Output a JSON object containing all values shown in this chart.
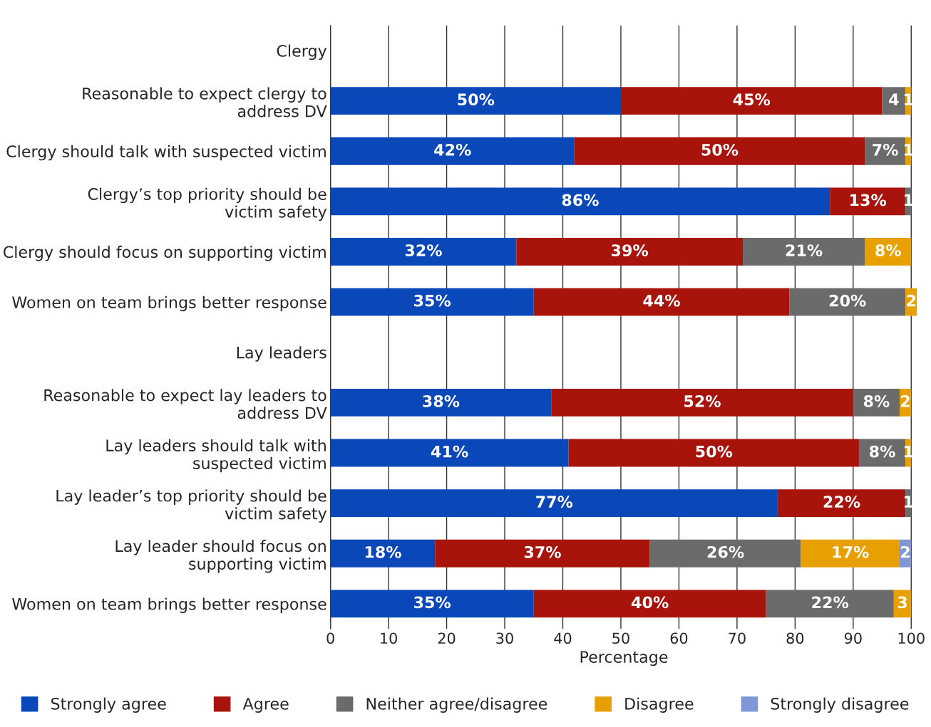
{
  "chart_data": {
    "type": "bar",
    "orientation": "horizontal",
    "stacked": true,
    "xlabel": "Percentage",
    "categories": [
      "Clergy",
      "Reasonable to expect clergy to\naddress DV",
      "Clergy should talk with suspected victim",
      "Clergy’s top priority should be\nvictim safety",
      "Clergy should focus on supporting victim",
      "Women on team brings better response",
      "Lay leaders",
      "Reasonable to expect lay leaders to\naddress DV",
      "Lay leaders should talk with\nsuspected victim",
      "Lay leader’s top priority should be\nvictim safety",
      "Lay leader should focus on\nsupporting victim",
      "Women on team brings better response"
    ],
    "series": [
      {
        "name": "Strongly agree",
        "color": "#0a47b8",
        "values": [
          null,
          50,
          42,
          86,
          32,
          35,
          null,
          38,
          41,
          77,
          18,
          35
        ],
        "value_labels": [
          null,
          "50%",
          "42%",
          "86%",
          "32%",
          "35%",
          null,
          "38%",
          "41%",
          "77%",
          "18%",
          "35%"
        ]
      },
      {
        "name": "Agree",
        "color": "#a8130b",
        "values": [
          null,
          45,
          50,
          13,
          39,
          44,
          null,
          52,
          50,
          22,
          37,
          40
        ],
        "value_labels": [
          null,
          "45%",
          "50%",
          "13%",
          "39%",
          "44%",
          null,
          "52%",
          "50%",
          "22%",
          "37%",
          "40%"
        ]
      },
      {
        "name": "Neither agree/disagree",
        "color": "#6b6b6b",
        "values": [
          null,
          4,
          7,
          1,
          21,
          20,
          null,
          8,
          8,
          1,
          26,
          22
        ],
        "value_labels": [
          null,
          "4",
          "7%",
          "1",
          "21%",
          "20%",
          null,
          "8%",
          "8%",
          "1",
          "26%",
          "22%"
        ]
      },
      {
        "name": "Disagree",
        "color": "#e8a000",
        "values": [
          null,
          1,
          1,
          null,
          8,
          2,
          null,
          2,
          1,
          null,
          17,
          3
        ],
        "value_labels": [
          null,
          "1",
          "1",
          null,
          "8%",
          "2",
          null,
          "2",
          "1",
          null,
          "17%",
          "3"
        ]
      },
      {
        "name": "Strongly disagree",
        "color": "#8096d6",
        "values": [
          null,
          null,
          null,
          null,
          null,
          null,
          null,
          null,
          null,
          null,
          2,
          null
        ],
        "value_labels": [
          null,
          null,
          null,
          null,
          null,
          null,
          null,
          null,
          null,
          null,
          "2",
          null
        ]
      }
    ],
    "xlim": [
      0,
      101
    ],
    "xticks": [
      0,
      10,
      20,
      30,
      40,
      50,
      60,
      70,
      80,
      90,
      100
    ],
    "grid": "x",
    "legend": "bottom"
  }
}
